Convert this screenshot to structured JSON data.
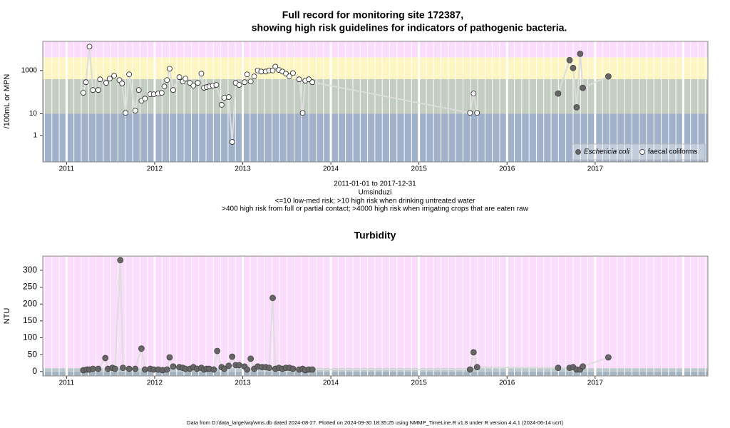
{
  "chart_data": [
    {
      "type": "scatter",
      "title": [
        "Full record for monitoring site 172387,",
        "showing high risk guidelines for indicators of pathogenic bacteria."
      ],
      "notes": [
        "2011-01-01 to 2017-12-31",
        "Umsinduzi",
        "<=10 low-med risk; >10 high risk when drinking untreated water",
        ">400 high risk from full or partial contact; >4000 high risk when irrigating crops that are eaten raw"
      ],
      "y_label": "/100mL or MPN",
      "ylog": true,
      "xlim": [
        2010.73,
        2018.28
      ],
      "xticks": [
        2011,
        2012,
        2013,
        2014,
        2015,
        2016,
        2017
      ],
      "ylim": [
        0.06,
        22000
      ],
      "yticks": [
        1,
        10,
        1000
      ],
      "bands": [
        {
          "from": 0.06,
          "to": 10,
          "color": "#a0b1c9"
        },
        {
          "from": 10,
          "to": 400,
          "color": "#c3cdc1"
        },
        {
          "from": 400,
          "to": 4000,
          "color": "#fdf6c3"
        },
        {
          "from": 4000,
          "to": 22000,
          "color": "#fcdcfc"
        }
      ],
      "line_color": "#dddddd",
      "legend": "bottom-right",
      "series": [
        {
          "name": "Eschericia coli",
          "marker": "filled",
          "color": "#666666",
          "x": [
            2016.58,
            2016.71,
            2016.75,
            2016.79,
            2016.83,
            2016.86,
            2017.15
          ],
          "values": [
            86,
            3000,
            1300,
            20,
            5900,
            158,
            530
          ]
        },
        {
          "name": "faecal coliforms",
          "marker": "open",
          "color": "#ffffff",
          "x": [
            2011.19,
            2011.22,
            2011.26,
            2011.3,
            2011.36,
            2011.38,
            2011.45,
            2011.49,
            2011.54,
            2011.6,
            2011.63,
            2011.67,
            2011.71,
            2011.78,
            2011.82,
            2011.85,
            2011.89,
            2011.95,
            2011.99,
            2012.04,
            2012.08,
            2012.11,
            2012.14,
            2012.17,
            2012.21,
            2012.28,
            2012.32,
            2012.35,
            2012.4,
            2012.44,
            2012.49,
            2012.53,
            2012.56,
            2012.59,
            2012.62,
            2012.66,
            2012.7,
            2012.76,
            2012.79,
            2012.84,
            2012.88,
            2012.92,
            2012.96,
            2013.02,
            2013.05,
            2013.09,
            2013.13,
            2013.17,
            2013.21,
            2013.26,
            2013.3,
            2013.34,
            2013.37,
            2013.41,
            2013.45,
            2013.49,
            2013.53,
            2013.57,
            2013.64,
            2013.68,
            2013.71,
            2013.75,
            2013.79,
            2015.58,
            2015.62,
            2015.66
          ],
          "values": [
            93,
            288,
            12600,
            125,
            125,
            390,
            267,
            420,
            570,
            360,
            250,
            11,
            660,
            14,
            125,
            40,
            50,
            80,
            80,
            86,
            93,
            183,
            360,
            1200,
            125,
            490,
            310,
            420,
            267,
            200,
            267,
            710,
            158,
            170,
            183,
            200,
            214,
            26,
            55,
            59,
            0.5,
            267,
            214,
            288,
            660,
            310,
            530,
            1000,
            890,
            890,
            1000,
            1000,
            1500,
            1050,
            890,
            710,
            530,
            760,
            390,
            11,
            335,
            390,
            288,
            11,
            86,
            11
          ]
        }
      ]
    },
    {
      "type": "scatter",
      "title": [
        "Turbidity"
      ],
      "y_label": "NTU",
      "ylog": false,
      "xlim": [
        2010.73,
        2018.28
      ],
      "xticks": [
        2011,
        2012,
        2013,
        2014,
        2015,
        2016,
        2017
      ],
      "ylim": [
        -13,
        342
      ],
      "yticks": [
        0,
        50,
        100,
        150,
        200,
        250,
        300
      ],
      "bands": [
        {
          "from": -13,
          "to": 0,
          "color": "#a6b3c0"
        },
        {
          "from": 0,
          "to": 10,
          "color": "#bcc9cc"
        },
        {
          "from": 10,
          "to": 342,
          "color": "#fcdcfc"
        }
      ],
      "line_color": "#dddddd",
      "marker": "filled",
      "color": "#666666",
      "x": [
        2011.19,
        2011.23,
        2011.26,
        2011.3,
        2011.36,
        2011.44,
        2011.47,
        2011.52,
        2011.55,
        2011.61,
        2011.64,
        2011.71,
        2011.78,
        2011.85,
        2011.89,
        2011.95,
        2011.99,
        2012.04,
        2012.09,
        2012.14,
        2012.17,
        2012.21,
        2012.28,
        2012.32,
        2012.35,
        2012.4,
        2012.44,
        2012.48,
        2012.53,
        2012.56,
        2012.59,
        2012.62,
        2012.67,
        2012.71,
        2012.76,
        2012.79,
        2012.84,
        2012.88,
        2012.92,
        2012.96,
        2013.02,
        2013.05,
        2013.09,
        2013.13,
        2013.17,
        2013.22,
        2013.26,
        2013.3,
        2013.34,
        2013.37,
        2013.41,
        2013.45,
        2013.49,
        2013.53,
        2013.57,
        2013.64,
        2013.68,
        2013.71,
        2013.75,
        2013.79,
        2015.58,
        2015.62,
        2015.66,
        2016.58,
        2016.71,
        2016.75,
        2016.79,
        2016.83,
        2016.86,
        2017.15
      ],
      "values": [
        4,
        6,
        6,
        8,
        8,
        40,
        8,
        11,
        8,
        330,
        11,
        8,
        8,
        68,
        6,
        8,
        6,
        6,
        4,
        6,
        42,
        15,
        13,
        11,
        8,
        8,
        13,
        8,
        11,
        6,
        8,
        8,
        6,
        61,
        13,
        8,
        17,
        44,
        19,
        19,
        15,
        6,
        38,
        8,
        15,
        13,
        13,
        11,
        218,
        8,
        11,
        8,
        11,
        11,
        8,
        6,
        8,
        4,
        6,
        6,
        6,
        57,
        13,
        11,
        11,
        13,
        6,
        6,
        15,
        42
      ]
    }
  ],
  "footer": "Data from D:/data_large/wq/wms.db dated 2024-08-27. Plotted on 2024-09-30 18:35:25 using NMMP_TimeLine.R v1.8 under R version 4.4.1 (2024-06-14 ucrt)"
}
